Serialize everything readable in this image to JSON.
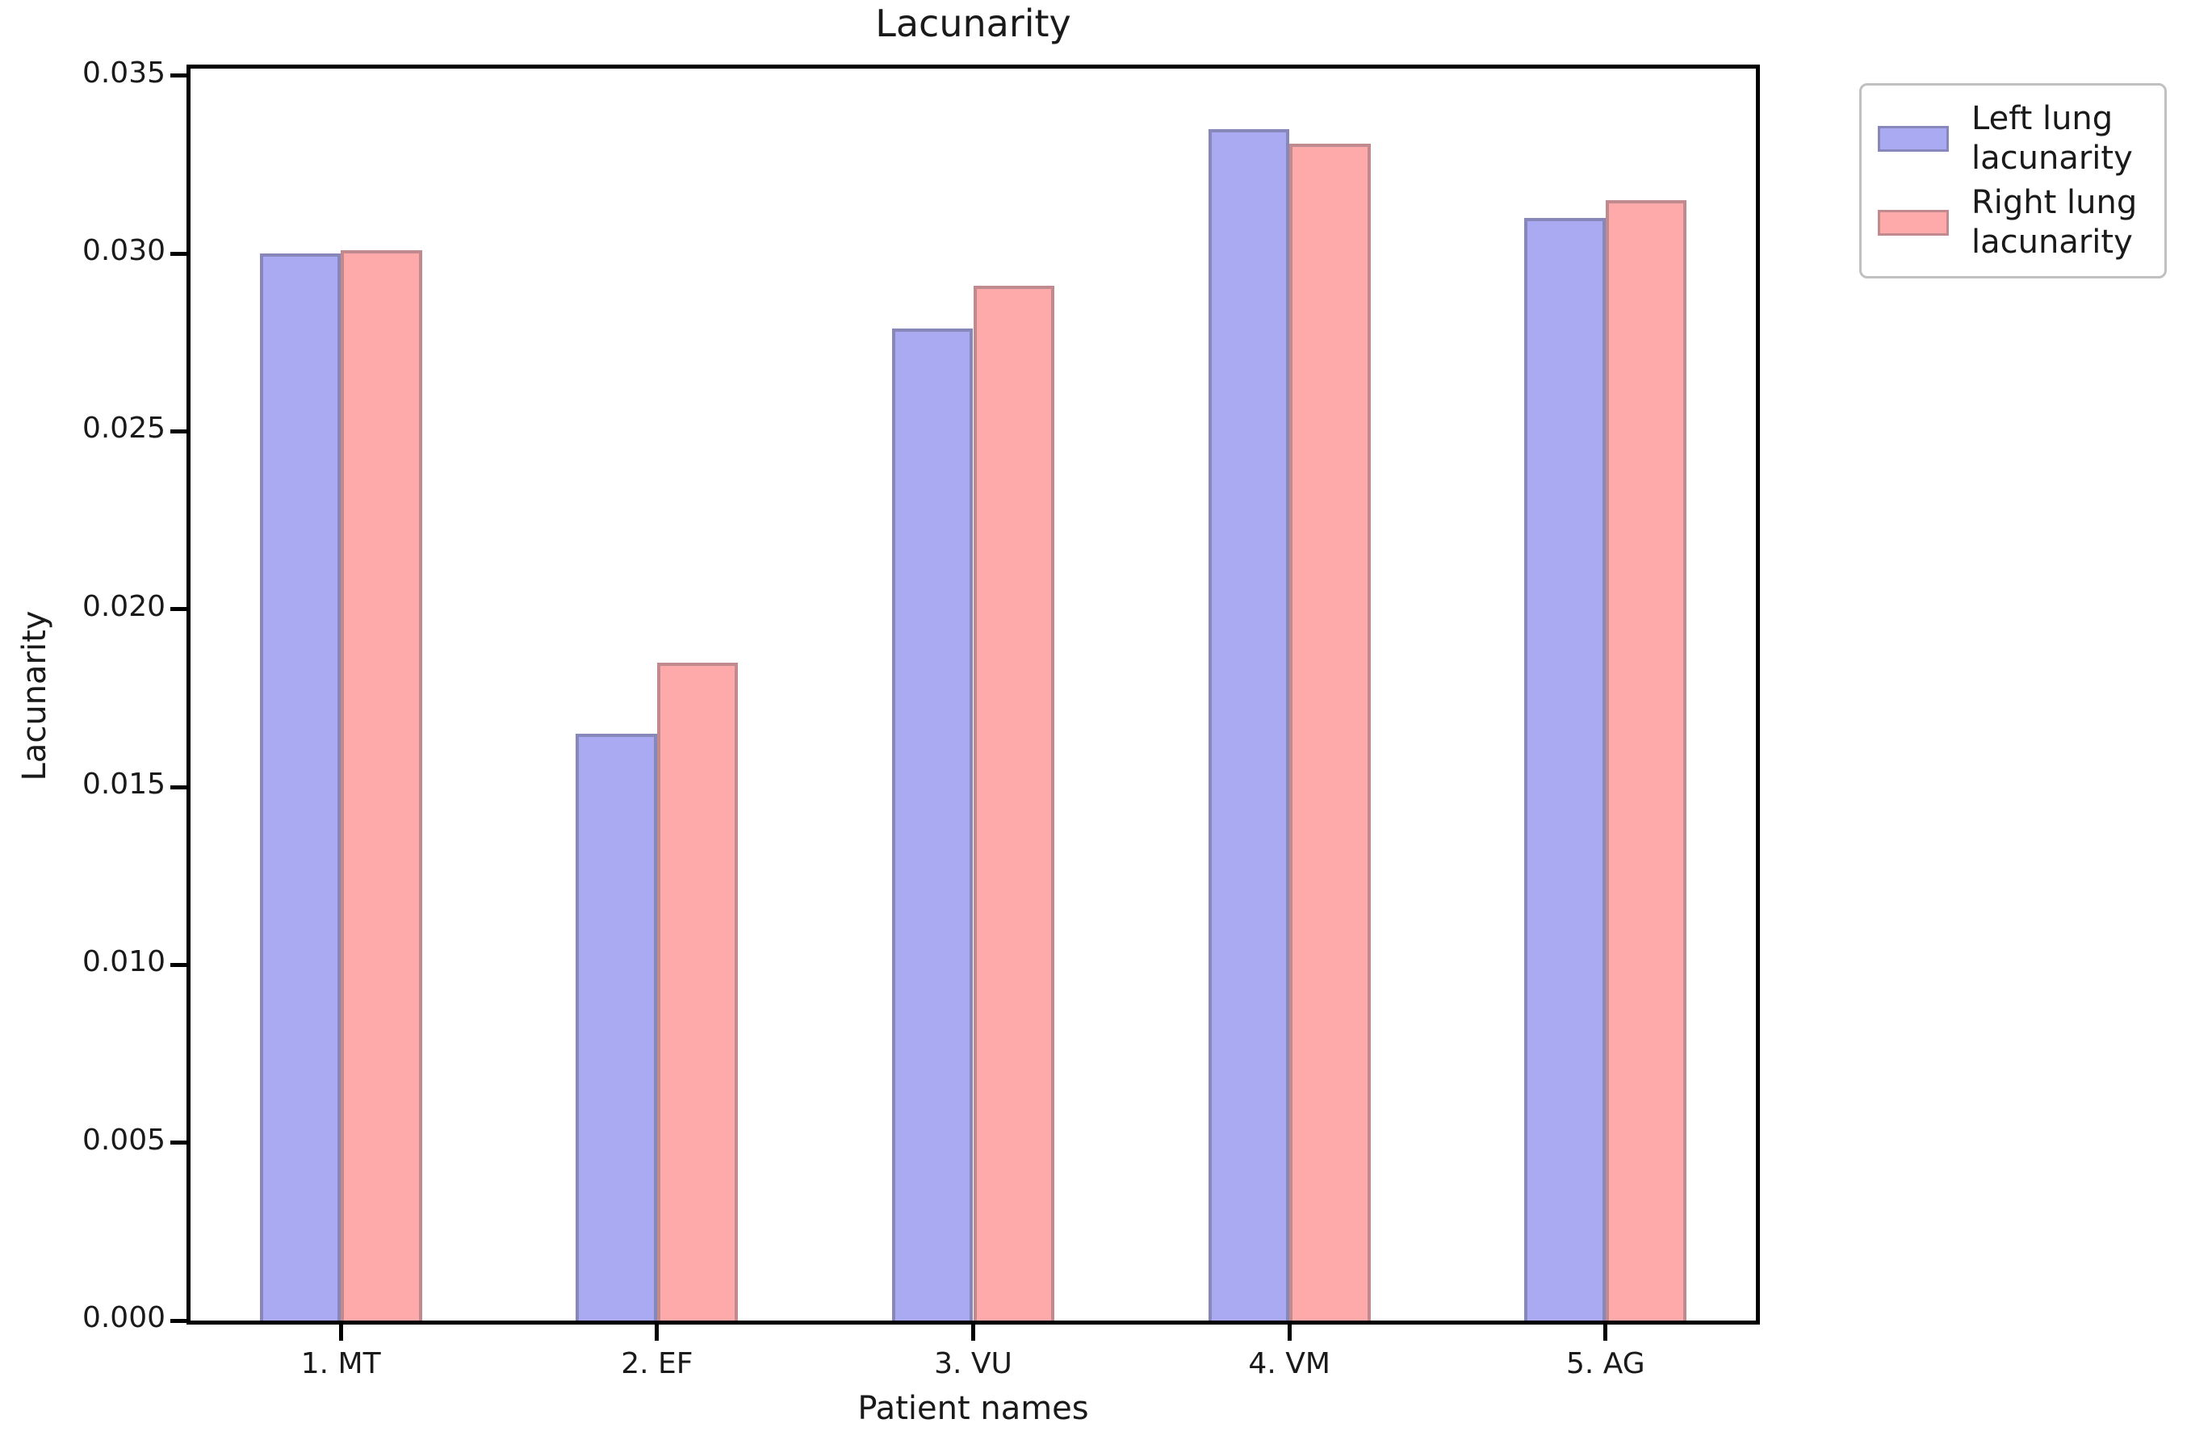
{
  "chart_data": {
    "type": "bar",
    "title": "Lacunarity",
    "xlabel": "Patient names",
    "ylabel": "Lacunarity",
    "categories": [
      "1. MT",
      "2. EF",
      "3. VU",
      "4. VM",
      "5. AG"
    ],
    "series": [
      {
        "name": "Left lung lacunarity",
        "legend_lines": [
          "Left lung",
          "lacunarity"
        ],
        "values": [
          0.03,
          0.0165,
          0.0279,
          0.0335,
          0.031
        ],
        "fill": "#aaaaf2",
        "edge": "#8787b9"
      },
      {
        "name": "Right lung lacunarity",
        "legend_lines": [
          "Right lung",
          "lacunarity"
        ],
        "values": [
          0.0301,
          0.0185,
          0.0291,
          0.0331,
          0.0315
        ],
        "fill": "#ffaaaa",
        "edge": "#c08a8e"
      }
    ],
    "yticks": [
      0.0,
      0.005,
      0.01,
      0.015,
      0.02,
      0.025,
      0.03,
      0.035
    ],
    "ytick_labels": [
      "0.000",
      "0.005",
      "0.010",
      "0.015",
      "0.020",
      "0.025",
      "0.030",
      "0.035"
    ],
    "ylim": [
      0,
      0.0352
    ],
    "grid": false,
    "legend_position": "outside-upper-right",
    "layout": {
      "centers_frac": [
        0.096,
        0.298,
        0.5,
        0.702,
        0.904
      ],
      "bar_width_frac": 0.0518
    }
  },
  "colors": {
    "axis": "#000000",
    "text": "#1a1a1a",
    "legend_border": "#c0c0c0",
    "left_fill": "#aaaaf2",
    "left_edge": "#8787b9",
    "right_fill": "#ffaaaa",
    "right_edge": "#c08a8e"
  }
}
